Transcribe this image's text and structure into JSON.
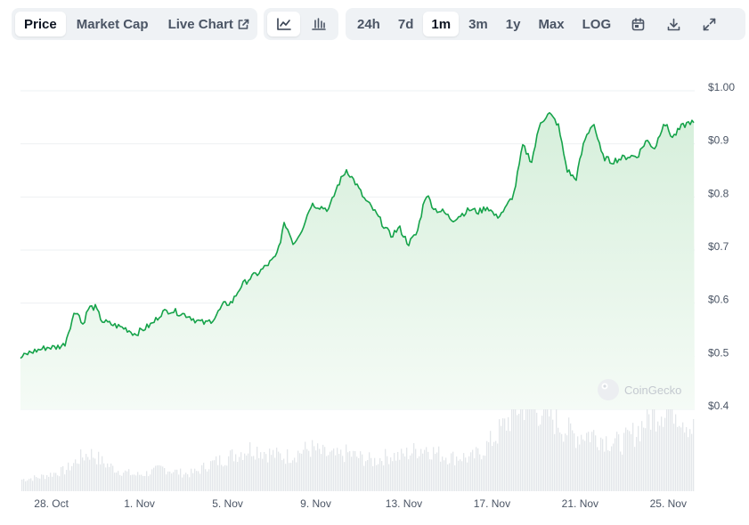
{
  "tabs": [
    {
      "label": "Price",
      "active": true
    },
    {
      "label": "Market Cap",
      "active": false
    },
    {
      "label": "Live Chart",
      "active": false
    }
  ],
  "chart_type_icons": [
    "line-chart-icon",
    "candlestick-chart-icon"
  ],
  "ranges": [
    {
      "label": "24h",
      "active": false
    },
    {
      "label": "7d",
      "active": false
    },
    {
      "label": "1m",
      "active": true
    },
    {
      "label": "3m",
      "active": false
    },
    {
      "label": "1y",
      "active": false
    },
    {
      "label": "Max",
      "active": false
    },
    {
      "label": "LOG",
      "active": false
    }
  ],
  "tool_icons": [
    "calendar-icon",
    "download-icon",
    "expand-icon"
  ],
  "watermark": "CoinGecko",
  "colors": {
    "line": "#16a34a",
    "fill_top": "#dcf2e0",
    "volume": "#e3e6ea",
    "grid": "#eef0f3"
  },
  "chart_data": {
    "type": "area",
    "y_tick_labels": [
      "$1.00",
      "$0.9",
      "$0.8",
      "$0.7",
      "$0.6",
      "$0.5",
      "$0.4"
    ],
    "y_ticks": [
      1.0,
      0.9,
      0.8,
      0.7,
      0.6,
      0.5,
      0.4
    ],
    "ylim": [
      0.4,
      1.0
    ],
    "x_tick_labels": [
      "28. Oct",
      "1. Nov",
      "5. Nov",
      "9. Nov",
      "13. Nov",
      "17. Nov",
      "21. Nov",
      "25. Nov"
    ],
    "x_ticks_day": [
      0,
      4,
      8,
      12,
      16,
      20,
      24,
      28
    ],
    "xlim_day": [
      -1.4,
      29.2
    ],
    "series": [
      {
        "x_day": [
          -1.4,
          -1.0,
          -0.6,
          -0.2,
          0.2,
          0.6,
          1.0,
          1.2,
          1.4,
          1.7,
          2.0,
          2.3,
          2.6,
          3.0,
          3.4,
          3.8,
          4.2,
          4.6,
          5.0,
          5.4,
          5.8,
          6.2,
          6.6,
          7.0,
          7.4,
          7.8,
          8.2,
          8.6,
          9.0,
          9.4,
          9.8,
          10.2,
          10.6,
          11.0,
          11.4,
          11.8,
          12.2,
          12.6,
          13.0,
          13.4,
          13.8,
          14.2,
          14.6,
          15.0,
          15.4,
          15.8,
          16.2,
          16.6,
          17.0,
          17.4,
          17.8,
          18.2,
          18.6,
          19.0,
          19.4,
          19.8,
          20.2,
          20.6,
          21.0,
          21.4,
          21.8,
          22.2,
          22.6,
          23.0,
          23.4,
          23.8,
          24.2,
          24.6,
          25.0,
          25.4,
          25.8,
          26.2,
          26.6,
          27.0,
          27.4,
          27.8,
          28.2,
          28.6,
          29.0,
          29.2
        ],
        "price": [
          0.49,
          0.5,
          0.505,
          0.51,
          0.51,
          0.515,
          0.57,
          0.58,
          0.55,
          0.585,
          0.585,
          0.56,
          0.555,
          0.55,
          0.545,
          0.535,
          0.545,
          0.555,
          0.575,
          0.58,
          0.575,
          0.57,
          0.56,
          0.555,
          0.565,
          0.59,
          0.595,
          0.625,
          0.64,
          0.65,
          0.665,
          0.68,
          0.745,
          0.705,
          0.735,
          0.78,
          0.775,
          0.77,
          0.815,
          0.845,
          0.82,
          0.79,
          0.77,
          0.745,
          0.72,
          0.735,
          0.705,
          0.725,
          0.8,
          0.77,
          0.765,
          0.75,
          0.76,
          0.77,
          0.765,
          0.775,
          0.755,
          0.77,
          0.8,
          0.89,
          0.86,
          0.935,
          0.95,
          0.93,
          0.845,
          0.825,
          0.9,
          0.935,
          0.87,
          0.86,
          0.865,
          0.87,
          0.87,
          0.9,
          0.885,
          0.935,
          0.905,
          0.925,
          0.935,
          0.93
        ],
        "volume": [
          0.1,
          0.11,
          0.12,
          0.14,
          0.16,
          0.18,
          0.24,
          0.28,
          0.3,
          0.33,
          0.3,
          0.25,
          0.22,
          0.18,
          0.16,
          0.14,
          0.15,
          0.17,
          0.2,
          0.18,
          0.16,
          0.15,
          0.17,
          0.22,
          0.25,
          0.28,
          0.31,
          0.34,
          0.37,
          0.36,
          0.33,
          0.31,
          0.3,
          0.32,
          0.35,
          0.37,
          0.33,
          0.31,
          0.3,
          0.33,
          0.3,
          0.28,
          0.26,
          0.29,
          0.31,
          0.3,
          0.33,
          0.36,
          0.38,
          0.33,
          0.31,
          0.29,
          0.3,
          0.28,
          0.33,
          0.4,
          0.49,
          0.58,
          0.7,
          0.76,
          0.74,
          0.7,
          0.66,
          0.59,
          0.52,
          0.48,
          0.5,
          0.49,
          0.46,
          0.43,
          0.41,
          0.46,
          0.53,
          0.62,
          0.68,
          0.72,
          0.74,
          0.66,
          0.55,
          0.53
        ]
      }
    ]
  }
}
